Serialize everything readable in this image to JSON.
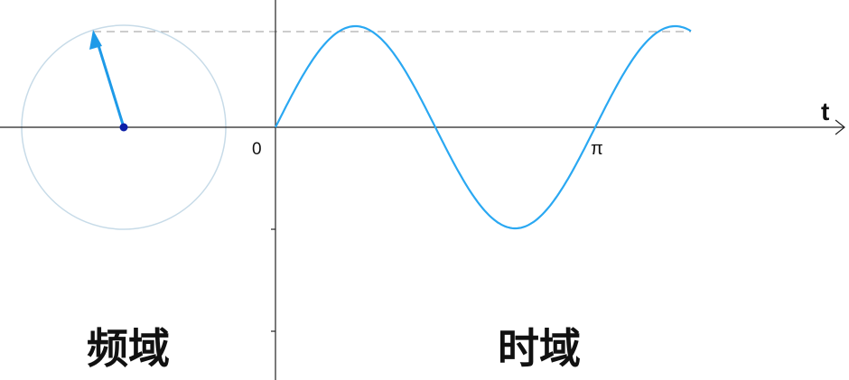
{
  "labels": {
    "axis_variable": "t",
    "origin": "0",
    "pi_tick": "π",
    "frequency_domain": "频域",
    "time_domain": "时域"
  },
  "colors": {
    "wave": "#2aa8f2",
    "phasor": "#1e9ae8",
    "phasor_center": "#0c1fa8",
    "circle": "#c7dbe8",
    "axis": "#222222",
    "guide_dash": "#9a9a9a"
  },
  "phasor": {
    "angle_from_positive_x_deg": 112,
    "dashed_guide_to_wave_peak": true
  },
  "wave": {
    "type": "sine",
    "amplitude": 1,
    "periods_shown": 1.3
  }
}
